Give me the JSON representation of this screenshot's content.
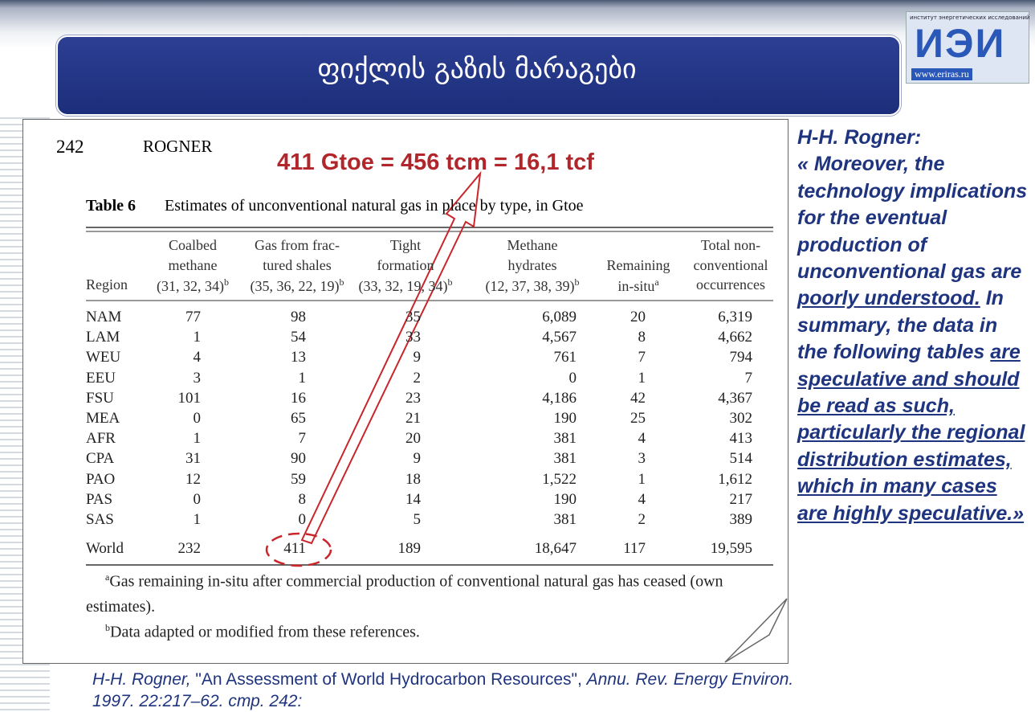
{
  "header": {
    "title": "ფიქლის გაზის მარაგები",
    "logo_text": "институт энергетических исследований",
    "logo_mark": "ИЭИ",
    "logo_url": "www.eriras.ru"
  },
  "page": {
    "number": "242",
    "running_head": "ROGNER",
    "annotation": "411 Gtoe = 456 tcm = 16,1 tcf"
  },
  "table": {
    "label": "Table 6",
    "caption": "Estimates of unconventional natural gas in place by type, in Gtoe",
    "columns": [
      {
        "lines": [
          "Region"
        ]
      },
      {
        "lines": [
          "Coalbed",
          "methane",
          "(31, 32, 34)"
        ],
        "sup": "b"
      },
      {
        "lines": [
          "Gas from frac-",
          "tured shales",
          "(35, 36, 22, 19)"
        ],
        "sup": "b"
      },
      {
        "lines": [
          "Tight",
          "formation",
          "(33, 32, 19, 34)"
        ],
        "sup": "b"
      },
      {
        "lines": [
          "Methane",
          "hydrates",
          "(12, 37, 38, 39)"
        ],
        "sup": "b"
      },
      {
        "lines": [
          "Remaining",
          "in-situ"
        ],
        "sup": "a"
      },
      {
        "lines": [
          "Total non-",
          "conventional",
          "occurrences"
        ]
      }
    ],
    "rows": [
      [
        "NAM",
        "77",
        "98",
        "35",
        "6,089",
        "20",
        "6,319"
      ],
      [
        "LAM",
        "1",
        "54",
        "33",
        "4,567",
        "8",
        "4,662"
      ],
      [
        "WEU",
        "4",
        "13",
        "9",
        "761",
        "7",
        "794"
      ],
      [
        "EEU",
        "3",
        "1",
        "2",
        "0",
        "1",
        "7"
      ],
      [
        "FSU",
        "101",
        "16",
        "23",
        "4,186",
        "42",
        "4,367"
      ],
      [
        "MEA",
        "0",
        "65",
        "21",
        "190",
        "25",
        "302"
      ],
      [
        "AFR",
        "1",
        "7",
        "20",
        "381",
        "4",
        "413"
      ],
      [
        "CPA",
        "31",
        "90",
        "9",
        "381",
        "3",
        "514"
      ],
      [
        "PAO",
        "12",
        "59",
        "18",
        "1,522",
        "1",
        "1,612"
      ],
      [
        "PAS",
        "0",
        "8",
        "14",
        "190",
        "4",
        "217"
      ],
      [
        "SAS",
        "1",
        "0",
        "5",
        "381",
        "2",
        "389"
      ]
    ],
    "total_row": [
      "World",
      "232",
      "411",
      "189",
      "18,647",
      "117",
      "19,595"
    ],
    "footnotes": [
      {
        "mark": "a",
        "text": "Gas remaining in-situ after commercial production of conventional natural gas has ceased (own estimates)."
      },
      {
        "mark": "b",
        "text": "Data adapted or modified from these references."
      }
    ]
  },
  "quote": {
    "heading": "H-H. Rogner:",
    "segments": [
      {
        "text": "« Moreover, the technology implications for the eventual production of unconventional gas are ",
        "underline": false
      },
      {
        "text": "poorly understood.",
        "underline": true
      },
      {
        "text": " In summary, the data in the following tables ",
        "underline": false
      },
      {
        "text": "are speculative and should be read as such, particularly the regional distribution estimates, which in many cases are highly speculative.»",
        "underline": true
      }
    ]
  },
  "citation": {
    "segments": [
      {
        "text": "H-H. Rogner, ",
        "italic": true
      },
      {
        "text": " \"An Assessment of World Hydrocarbon Resources\", ",
        "italic": false
      },
      {
        "text": "Annu. Rev. Energy Environ. 1997. 22:217–62. стр. 242:",
        "italic": true
      }
    ]
  }
}
